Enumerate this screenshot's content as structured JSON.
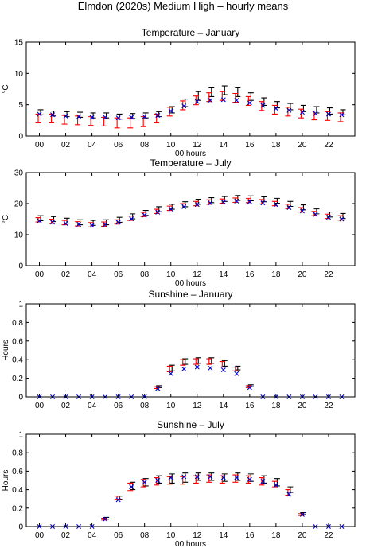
{
  "figure_title": "Elmdon (2020s) Medium High – hourly means",
  "chart_data": [
    {
      "type": "errorbar",
      "title": "Temperature – January",
      "xlabel": "00 hours",
      "ylabel": "°C",
      "ylim": [
        0,
        15
      ],
      "yticks": [
        0,
        5,
        10,
        15
      ],
      "xlim": [
        -1,
        24
      ],
      "xticks": [
        0,
        2,
        4,
        6,
        8,
        10,
        12,
        14,
        16,
        18,
        20,
        22
      ],
      "xtick_labels": [
        "00",
        "02",
        "04",
        "06",
        "08",
        "10",
        "12",
        "14",
        "16",
        "18",
        "20",
        "22"
      ],
      "x": [
        0,
        1,
        2,
        3,
        4,
        5,
        6,
        7,
        8,
        9,
        10,
        11,
        12,
        13,
        14,
        15,
        16,
        17,
        18,
        19,
        20,
        21,
        22,
        23
      ],
      "series": [
        {
          "marker": "errorbar",
          "color": "#000000",
          "values": [
            3.8,
            3.6,
            3.5,
            3.4,
            3.3,
            3.3,
            3.1,
            3.2,
            3.3,
            3.5,
            4.2,
            5.3,
            6.4,
            7.0,
            7.3,
            7.0,
            6.3,
            5.5,
            5.0,
            4.7,
            4.4,
            4.2,
            4.0,
            3.8
          ],
          "err": [
            0.4,
            0.4,
            0.4,
            0.4,
            0.4,
            0.4,
            0.4,
            0.4,
            0.4,
            0.4,
            0.5,
            0.6,
            0.7,
            0.7,
            0.7,
            0.7,
            0.6,
            0.6,
            0.5,
            0.5,
            0.5,
            0.5,
            0.5,
            0.4
          ]
        },
        {
          "marker": "errorbar",
          "color": "#ff0000",
          "values": [
            2.8,
            2.8,
            2.6,
            2.5,
            2.4,
            2.3,
            2.1,
            2.1,
            2.3,
            2.8,
            3.9,
            4.9,
            5.7,
            6.2,
            6.4,
            6.1,
            5.6,
            4.8,
            4.2,
            3.9,
            3.6,
            3.3,
            3.2,
            3.0
          ],
          "err": [
            0.7,
            0.7,
            0.7,
            0.7,
            0.7,
            0.7,
            0.8,
            0.8,
            0.8,
            0.7,
            0.7,
            0.7,
            0.7,
            0.7,
            0.7,
            0.7,
            0.7,
            0.7,
            0.7,
            0.7,
            0.7,
            0.7,
            0.7,
            0.7
          ]
        },
        {
          "marker": "x",
          "color": "#0000cc",
          "values": [
            3.5,
            3.4,
            3.2,
            3.1,
            3.0,
            3.0,
            2.9,
            3.0,
            3.1,
            3.3,
            4.0,
            4.8,
            5.5,
            5.7,
            5.8,
            5.7,
            5.3,
            4.9,
            4.4,
            4.1,
            3.8,
            3.6,
            3.5,
            3.4
          ]
        }
      ]
    },
    {
      "type": "errorbar",
      "title": "Temperature – July",
      "xlabel": "00 hours",
      "ylabel": "°C",
      "ylim": [
        0,
        30
      ],
      "yticks": [
        0,
        10,
        20,
        30
      ],
      "xlim": [
        -1,
        24
      ],
      "xticks": [
        0,
        2,
        4,
        6,
        8,
        10,
        12,
        14,
        16,
        18,
        20,
        22
      ],
      "xtick_labels": [
        "00",
        "02",
        "04",
        "06",
        "08",
        "10",
        "12",
        "14",
        "16",
        "18",
        "20",
        "22"
      ],
      "x": [
        0,
        1,
        2,
        3,
        4,
        5,
        6,
        7,
        8,
        9,
        10,
        11,
        12,
        13,
        14,
        15,
        16,
        17,
        18,
        19,
        20,
        21,
        22,
        23
      ],
      "series": [
        {
          "marker": "errorbar",
          "color": "#000000",
          "values": [
            15.3,
            15.0,
            14.5,
            14.0,
            13.8,
            14.0,
            14.8,
            15.9,
            17.0,
            18.2,
            19.0,
            19.8,
            20.6,
            21.1,
            21.5,
            21.8,
            21.7,
            21.4,
            20.9,
            19.9,
            18.8,
            17.5,
            16.5,
            16.0
          ],
          "err": [
            0.8,
            0.8,
            0.8,
            0.8,
            0.8,
            0.8,
            0.8,
            0.8,
            0.8,
            0.8,
            0.8,
            0.8,
            0.8,
            0.8,
            0.8,
            0.8,
            0.8,
            0.8,
            0.8,
            0.8,
            0.8,
            0.8,
            0.8,
            0.8
          ]
        },
        {
          "marker": "errorbar",
          "color": "#ff0000",
          "values": [
            14.8,
            14.3,
            13.9,
            13.5,
            13.2,
            13.4,
            14.1,
            15.3,
            16.5,
            17.5,
            18.5,
            19.3,
            20.0,
            20.5,
            20.8,
            21.1,
            21.0,
            20.6,
            20.0,
            19.1,
            18.0,
            16.8,
            15.9,
            15.4
          ],
          "err": [
            0.7,
            0.7,
            0.7,
            0.7,
            0.7,
            0.7,
            0.7,
            0.7,
            0.7,
            0.7,
            0.7,
            0.7,
            0.7,
            0.7,
            0.7,
            0.7,
            0.7,
            0.7,
            0.7,
            0.7,
            0.7,
            0.7,
            0.7,
            0.7
          ]
        },
        {
          "marker": "x",
          "color": "#0000cc",
          "values": [
            14.5,
            14.0,
            13.6,
            13.3,
            13.0,
            13.2,
            14.0,
            15.1,
            16.3,
            17.2,
            18.2,
            19.0,
            19.7,
            20.2,
            20.5,
            20.8,
            20.6,
            20.2,
            19.6,
            18.7,
            17.6,
            16.5,
            15.6,
            15.0
          ]
        }
      ]
    },
    {
      "type": "errorbar",
      "title": "Sunshine – January",
      "xlabel": "",
      "ylabel": "Hours",
      "ylim": [
        0,
        1
      ],
      "yticks": [
        0,
        0.2,
        0.4,
        0.6,
        0.8,
        1
      ],
      "xlim": [
        -1,
        24
      ],
      "xticks": [
        0,
        2,
        4,
        6,
        8,
        10,
        12,
        14,
        16,
        18,
        20,
        22
      ],
      "xtick_labels": [
        "00",
        "02",
        "04",
        "06",
        "08",
        "10",
        "12",
        "14",
        "16",
        "18",
        "20",
        "22"
      ],
      "x": [
        0,
        1,
        2,
        3,
        4,
        5,
        6,
        7,
        8,
        9,
        10,
        11,
        12,
        13,
        14,
        15,
        16,
        17,
        18,
        19,
        20,
        21,
        22,
        23
      ],
      "series": [
        {
          "marker": "errorbar",
          "color": "#000000",
          "values": [
            0,
            0,
            0,
            0,
            0,
            0,
            0,
            0,
            0,
            0.11,
            0.31,
            0.38,
            0.39,
            0.39,
            0.36,
            0.31,
            0.12,
            0,
            0,
            0,
            0,
            0,
            0,
            0
          ],
          "err": [
            0,
            0,
            0,
            0,
            0,
            0,
            0,
            0,
            0,
            0.01,
            0.03,
            0.03,
            0.03,
            0.03,
            0.03,
            0.02,
            0.01,
            0,
            0,
            0,
            0,
            0,
            0,
            0
          ]
        },
        {
          "marker": "errorbar",
          "color": "#ff0000",
          "values": [
            0,
            0,
            0,
            0,
            0,
            0,
            0,
            0,
            0,
            0.1,
            0.3,
            0.37,
            0.38,
            0.38,
            0.35,
            0.3,
            0.11,
            0,
            0,
            0,
            0,
            0,
            0,
            0
          ],
          "err": [
            0,
            0,
            0,
            0,
            0,
            0,
            0,
            0,
            0,
            0.01,
            0.03,
            0.03,
            0.03,
            0.03,
            0.03,
            0.02,
            0.01,
            0,
            0,
            0,
            0,
            0,
            0,
            0
          ]
        },
        {
          "marker": "x",
          "color": "#0000cc",
          "values": [
            0,
            0,
            0,
            0,
            0,
            0,
            0,
            0,
            0,
            0.09,
            0.25,
            0.3,
            0.32,
            0.31,
            0.29,
            0.25,
            0.1,
            0,
            0,
            0,
            0,
            0,
            0,
            0
          ]
        }
      ]
    },
    {
      "type": "errorbar",
      "title": "Sunshine – July",
      "xlabel": "00 hours",
      "ylabel": "Hours",
      "ylim": [
        0,
        1
      ],
      "yticks": [
        0,
        0.2,
        0.4,
        0.6,
        0.8,
        1
      ],
      "xlim": [
        -1,
        24
      ],
      "xticks": [
        0,
        2,
        4,
        6,
        8,
        10,
        12,
        14,
        16,
        18,
        20,
        22
      ],
      "xtick_labels": [
        "00",
        "02",
        "04",
        "06",
        "08",
        "10",
        "12",
        "14",
        "16",
        "18",
        "20",
        "22"
      ],
      "x": [
        0,
        1,
        2,
        3,
        4,
        5,
        6,
        7,
        8,
        9,
        10,
        11,
        12,
        13,
        14,
        15,
        16,
        17,
        18,
        19,
        20,
        21,
        22,
        23
      ],
      "series": [
        {
          "marker": "errorbar",
          "color": "#000000",
          "values": [
            0,
            0,
            0,
            0,
            0,
            0.09,
            0.31,
            0.44,
            0.48,
            0.51,
            0.52,
            0.53,
            0.54,
            0.54,
            0.53,
            0.54,
            0.53,
            0.51,
            0.48,
            0.4,
            0.14,
            0,
            0,
            0
          ],
          "err": [
            0,
            0,
            0,
            0,
            0,
            0.01,
            0.02,
            0.04,
            0.04,
            0.04,
            0.05,
            0.05,
            0.04,
            0.04,
            0.04,
            0.04,
            0.04,
            0.04,
            0.04,
            0.03,
            0.01,
            0,
            0,
            0
          ]
        },
        {
          "marker": "errorbar",
          "color": "#ff0000",
          "values": [
            0,
            0,
            0,
            0,
            0,
            0.08,
            0.31,
            0.43,
            0.47,
            0.49,
            0.5,
            0.5,
            0.51,
            0.52,
            0.51,
            0.52,
            0.51,
            0.49,
            0.46,
            0.37,
            0.13,
            0,
            0,
            0
          ],
          "err": [
            0,
            0,
            0,
            0,
            0,
            0.01,
            0.02,
            0.04,
            0.04,
            0.04,
            0.04,
            0.04,
            0.04,
            0.04,
            0.04,
            0.04,
            0.04,
            0.04,
            0.03,
            0.03,
            0.01,
            0,
            0,
            0
          ]
        },
        {
          "marker": "x",
          "color": "#0000cc",
          "values": [
            0,
            0,
            0,
            0,
            0,
            0.08,
            0.29,
            0.43,
            0.48,
            0.5,
            0.53,
            0.54,
            0.54,
            0.54,
            0.53,
            0.53,
            0.51,
            0.49,
            0.45,
            0.35,
            0.13,
            0,
            0,
            0
          ]
        }
      ]
    }
  ]
}
